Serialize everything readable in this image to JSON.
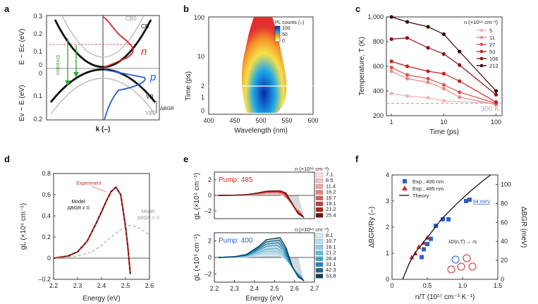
{
  "panels": {
    "a": {
      "label": "a",
      "ylabel_top": "E − Ec (eV)",
      "ylabel_bottom": "Ev − E (eV)",
      "xlabel": "k (–)",
      "yticks_top": [
        "0.3",
        "0.2",
        "0.1",
        "0"
      ],
      "yticks_bottom": [
        "0",
        "0.1",
        "0.2"
      ],
      "labels": {
        "cb0": "CB0",
        "cb": "CB",
        "vb": "VB",
        "vb0": "VB0",
        "n": "n",
        "p": "p",
        "emission": "Emission",
        "dbgr": "ΔBGR"
      },
      "colors": {
        "band": "#111111",
        "ref": "#bbbbbb",
        "n": "#d42a2a",
        "p": "#2a5fd4",
        "arrow": "#3aa83a"
      }
    },
    "b": {
      "label": "b",
      "xlabel": "Wavelength (nm)",
      "ylabel": "Time (ps)",
      "xticks": [
        "400",
        "450",
        "500",
        "550",
        "600"
      ],
      "yticks": [
        "100",
        "10",
        "2",
        "1",
        "0"
      ],
      "colorbar_title": "PL counts (–)",
      "colorbar_ticks": [
        "100",
        "50",
        "0"
      ]
    },
    "c": {
      "label": "c",
      "chart_data": {
        "type": "line",
        "xlabel": "Time (ps)",
        "ylabel": "Temperature, T (K)",
        "xscale": "log",
        "xlim": [
          0.8,
          130
        ],
        "ylim": [
          200,
          1000
        ],
        "xticks": [
          "1",
          "10",
          "100"
        ],
        "yticks": [
          "1,000",
          "800",
          "600",
          "400",
          "200"
        ],
        "legend_title": "n (×10¹⁸ cm⁻³)",
        "reference_line": {
          "value": 300,
          "label": "300 K"
        },
        "series": [
          {
            "name": "5",
            "color": "#f2b3b3",
            "x": [
              1,
              2,
              5,
              10,
              100
            ],
            "y": [
              380,
              360,
              345,
              320,
              300
            ]
          },
          {
            "name": "11",
            "color": "#e88a8a",
            "x": [
              1,
              2,
              5,
              10,
              20,
              100
            ],
            "y": [
              560,
              500,
              470,
              420,
              350,
              290
            ]
          },
          {
            "name": "27",
            "color": "#dc5050",
            "x": [
              1,
              2,
              5,
              10,
              20,
              100
            ],
            "y": [
              590,
              530,
              500,
              450,
              390,
              300
            ]
          },
          {
            "name": "53",
            "color": "#c42020",
            "x": [
              1,
              2,
              5,
              10,
              20,
              100
            ],
            "y": [
              640,
              600,
              560,
              540,
              480,
              310
            ]
          },
          {
            "name": "106",
            "color": "#8a1010",
            "x": [
              1,
              2,
              5,
              10,
              20,
              100
            ],
            "y": [
              820,
              830,
              750,
              700,
              610,
              370
            ]
          },
          {
            "name": "212",
            "color": "#3a0606",
            "x": [
              1,
              2,
              5,
              10,
              20,
              100
            ],
            "y": [
              1000,
              960,
              920,
              860,
              720,
              400
            ]
          }
        ]
      }
    },
    "d": {
      "label": "d",
      "chart_data": {
        "type": "line",
        "xlabel": "Energy (eV)",
        "ylabel": "gL (×10⁴ cm⁻¹)",
        "xlim": [
          2.2,
          2.6
        ],
        "ylim": [
          -0.2,
          0.8
        ],
        "xticks": [
          "2.2",
          "2.3",
          "2.4",
          "2.5",
          "2.6"
        ],
        "yticks": [
          "0.8",
          "0.6",
          "0.4",
          "0.2",
          "0",
          "–0.2"
        ],
        "series": [
          {
            "name": "Experiment",
            "color": "#d42a2a",
            "x": [
              2.2,
              2.26,
              2.3,
              2.34,
              2.38,
              2.42,
              2.44,
              2.46,
              2.48,
              2.5,
              2.51,
              2.52
            ],
            "y": [
              0.0,
              0.02,
              0.06,
              0.16,
              0.34,
              0.54,
              0.63,
              0.67,
              0.6,
              0.3,
              0.1,
              -0.15
            ]
          },
          {
            "name": "Model ΔBGR ≠ 0",
            "color": "#111111",
            "x": [
              2.2,
              2.26,
              2.3,
              2.34,
              2.38,
              2.42,
              2.44,
              2.46,
              2.48,
              2.5,
              2.51,
              2.52
            ],
            "y": [
              0.0,
              0.02,
              0.06,
              0.16,
              0.34,
              0.54,
              0.63,
              0.67,
              0.6,
              0.3,
              0.1,
              -0.15
            ]
          },
          {
            "name": "Model ΔBGR = 0",
            "color": "#999999",
            "x": [
              2.2,
              2.3,
              2.36,
              2.4,
              2.44,
              2.48,
              2.5,
              2.52,
              2.54,
              2.56,
              2.6
            ],
            "y": [
              0.0,
              0.02,
              0.06,
              0.12,
              0.2,
              0.27,
              0.3,
              0.31,
              0.3,
              0.28,
              0.22
            ]
          }
        ],
        "annotations": {
          "experiment": "Experiment",
          "model1": "Model",
          "model1_sub": "ΔBGR ≠ 0",
          "model2": "Model",
          "model2_sub": "ΔBGR = 0"
        }
      }
    },
    "e": {
      "label": "e",
      "chart_data": [
        {
          "type": "line",
          "title": "Pump: 485",
          "ylabel": "gL (×10⁴ cm⁻¹)",
          "xlim": [
            2.2,
            2.7
          ],
          "ylim": [
            -3,
            3
          ],
          "yticks": [
            "2",
            "0",
            "–2"
          ],
          "legend_title": "n (×10¹⁸ cm⁻³)",
          "densities": [
            "7.1",
            "8.5",
            "11.4",
            "16.2",
            "18.7",
            "19.1",
            "21.2",
            "25.4"
          ],
          "peaks": [
            0.2,
            0.25,
            0.3,
            0.38,
            0.45,
            0.5,
            0.55,
            0.6
          ],
          "colors": [
            "#fbe0e0",
            "#f5c4c4",
            "#eea3a3",
            "#e58080",
            "#da5d5d",
            "#c83c3c",
            "#a82424",
            "#701010"
          ]
        },
        {
          "type": "line",
          "title": "Pump: 400",
          "ylabel": "gL (×10⁴ cm⁻¹)",
          "xlabel": "Energy (eV)",
          "xlim": [
            2.2,
            2.7
          ],
          "ylim": [
            -3,
            3
          ],
          "xticks": [
            "2.2",
            "2.3",
            "2.4",
            "2.5",
            "2.6",
            "2.7"
          ],
          "yticks": [
            "2",
            "0",
            "–2"
          ],
          "legend_title": "n (×10¹⁸ cm⁻³)",
          "densities": [
            "8.1",
            "10.7",
            "16.1",
            "21.2",
            "28.4",
            "31.1",
            "42.3",
            "53.8"
          ],
          "peaks": [
            0.3,
            0.5,
            0.8,
            1.1,
            1.5,
            1.8,
            2.1,
            2.4
          ],
          "colors": [
            "#d4eef8",
            "#b3e0f2",
            "#8ccfe8",
            "#62badc",
            "#3ea2cc",
            "#2585b3",
            "#176790",
            "#0c3f5c"
          ]
        }
      ]
    },
    "f": {
      "label": "f",
      "chart_data": {
        "type": "scatter",
        "xlabel": "n/T (10¹⁷ cm⁻³ K⁻¹)",
        "ylabel": "ΔBGR/Ry (–)",
        "y2label": "ΔBGR (meV)",
        "xlim": [
          0,
          1.5
        ],
        "ylim": [
          0,
          4
        ],
        "y2lim": [
          0,
          110
        ],
        "xticks": [
          "0",
          "0.5",
          "1.0",
          "1.5"
        ],
        "yticks": [
          "4",
          "3",
          "2",
          "1",
          "0"
        ],
        "y2ticks": [
          "100",
          "80",
          "60",
          "40",
          "20",
          "0"
        ],
        "annotation": "84 meV",
        "inset_label": "λD(n,T) ↔ rs",
        "series": [
          {
            "name": "Exp., 400 nm",
            "color": "#2a5fd4",
            "marker": "square",
            "x": [
              0.42,
              0.45,
              0.5,
              0.55,
              0.62,
              0.72,
              0.8,
              1.05,
              1.1
            ],
            "y": [
              0.85,
              1.15,
              1.35,
              1.55,
              2.05,
              2.3,
              2.3,
              3.0,
              3.05
            ]
          },
          {
            "name": "Exp., 485 nm",
            "color": "#d42a2a",
            "marker": "triangle",
            "x": [
              0.28,
              0.33,
              0.38,
              0.45,
              0.5
            ],
            "y": [
              0.85,
              1.0,
              1.25,
              1.4,
              1.6
            ]
          },
          {
            "name": "Theory",
            "color": "#111111",
            "marker": "line",
            "x": [
              0.15,
              0.25,
              0.35,
              0.5,
              0.7,
              0.9,
              1.1,
              1.3,
              1.4
            ],
            "y": [
              0.0,
              0.65,
              1.1,
              1.6,
              2.3,
              2.85,
              3.35,
              3.8,
              4.0
            ]
          }
        ]
      }
    }
  }
}
